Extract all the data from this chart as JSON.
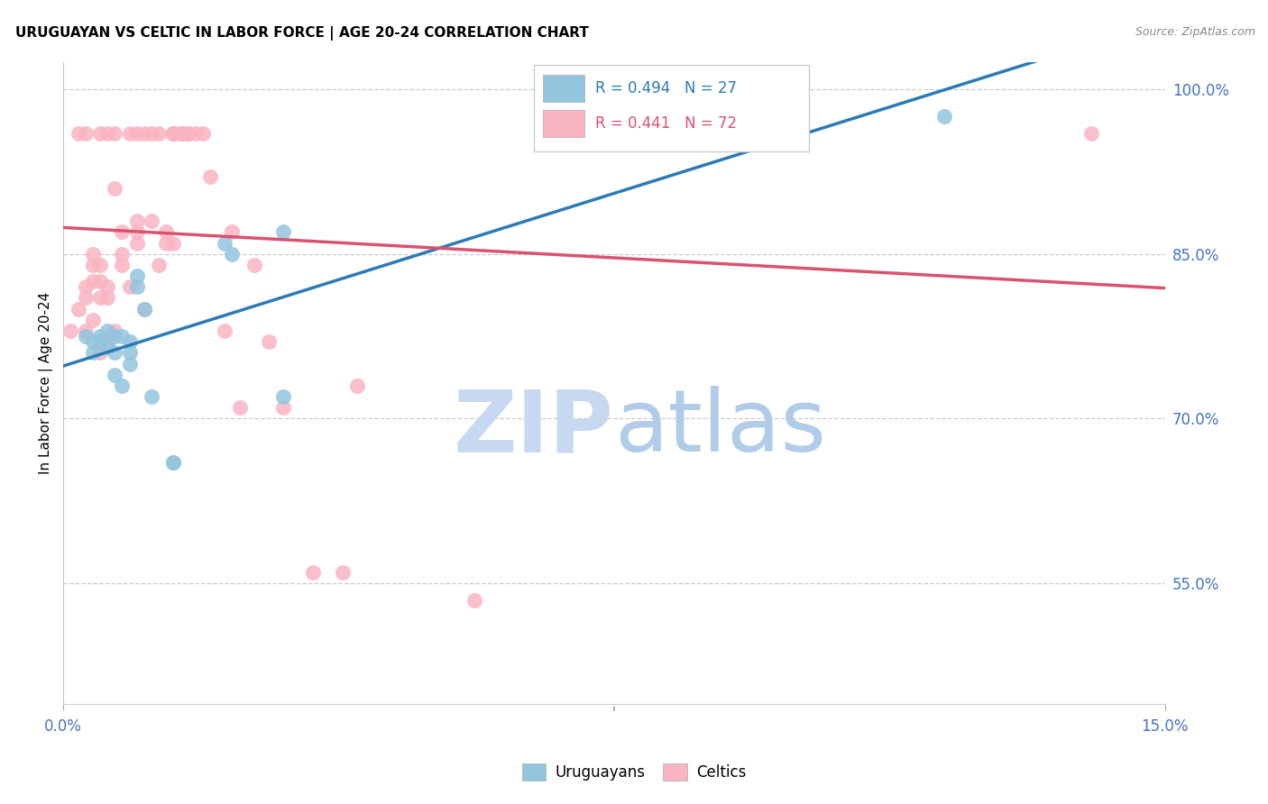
{
  "title": "URUGUAYAN VS CELTIC IN LABOR FORCE | AGE 20-24 CORRELATION CHART",
  "source": "Source: ZipAtlas.com",
  "ylabel_label": "In Labor Force | Age 20-24",
  "xlim": [
    0.0,
    0.15
  ],
  "ylim": [
    0.44,
    1.025
  ],
  "yticks": [
    0.55,
    0.7,
    0.85,
    1.0
  ],
  "ytick_labels": [
    "55.0%",
    "70.0%",
    "85.0%",
    "100.0%"
  ],
  "xticks": [
    0.0,
    0.15
  ],
  "xtick_labels": [
    "0.0%",
    "15.0%"
  ],
  "legend_r_blue": "R = 0.494",
  "legend_n_blue": "N = 27",
  "legend_r_pink": "R = 0.441",
  "legend_n_pink": "N = 72",
  "blue_scatter_color": "#92c5de",
  "pink_scatter_color": "#f9b4c2",
  "blue_line_color": "#2c7bb6",
  "pink_line_color": "#d9536f",
  "axis_tick_color": "#4472c4",
  "watermark_zip_color": "#c6d9f0",
  "watermark_atlas_color": "#b0cce8",
  "uruguayan_x": [
    0.003,
    0.004,
    0.004,
    0.005,
    0.005,
    0.006,
    0.006,
    0.007,
    0.007,
    0.007,
    0.008,
    0.008,
    0.009,
    0.009,
    0.009,
    0.01,
    0.01,
    0.011,
    0.012,
    0.015,
    0.015,
    0.022,
    0.023,
    0.03,
    0.03,
    0.072,
    0.12
  ],
  "uruguayan_y": [
    0.775,
    0.77,
    0.76,
    0.775,
    0.77,
    0.78,
    0.765,
    0.775,
    0.76,
    0.74,
    0.775,
    0.73,
    0.77,
    0.76,
    0.75,
    0.83,
    0.82,
    0.8,
    0.72,
    0.66,
    0.66,
    0.86,
    0.85,
    0.87,
    0.72,
    0.955,
    0.975
  ],
  "celtic_x": [
    0.001,
    0.002,
    0.002,
    0.003,
    0.003,
    0.003,
    0.003,
    0.004,
    0.004,
    0.004,
    0.004,
    0.005,
    0.005,
    0.005,
    0.005,
    0.005,
    0.006,
    0.006,
    0.006,
    0.006,
    0.007,
    0.007,
    0.007,
    0.008,
    0.008,
    0.008,
    0.009,
    0.009,
    0.01,
    0.01,
    0.01,
    0.01,
    0.011,
    0.011,
    0.012,
    0.012,
    0.013,
    0.013,
    0.014,
    0.014,
    0.015,
    0.015,
    0.015,
    0.015,
    0.015,
    0.015,
    0.015,
    0.016,
    0.016,
    0.016,
    0.016,
    0.016,
    0.016,
    0.017,
    0.017,
    0.017,
    0.017,
    0.018,
    0.019,
    0.02,
    0.022,
    0.023,
    0.024,
    0.026,
    0.028,
    0.03,
    0.034,
    0.038,
    0.04,
    0.056,
    0.09,
    0.14
  ],
  "celtic_y": [
    0.78,
    0.96,
    0.8,
    0.78,
    0.81,
    0.82,
    0.96,
    0.79,
    0.825,
    0.84,
    0.85,
    0.76,
    0.81,
    0.825,
    0.84,
    0.96,
    0.77,
    0.82,
    0.81,
    0.96,
    0.91,
    0.78,
    0.96,
    0.87,
    0.85,
    0.84,
    0.82,
    0.96,
    0.88,
    0.87,
    0.86,
    0.96,
    0.8,
    0.96,
    0.88,
    0.96,
    0.84,
    0.96,
    0.86,
    0.87,
    0.86,
    0.96,
    0.96,
    0.96,
    0.96,
    0.96,
    0.96,
    0.96,
    0.96,
    0.96,
    0.96,
    0.96,
    0.96,
    0.96,
    0.96,
    0.96,
    0.96,
    0.96,
    0.96,
    0.92,
    0.78,
    0.87,
    0.71,
    0.84,
    0.77,
    0.71,
    0.56,
    0.56,
    0.73,
    0.535,
    0.96,
    0.96
  ]
}
